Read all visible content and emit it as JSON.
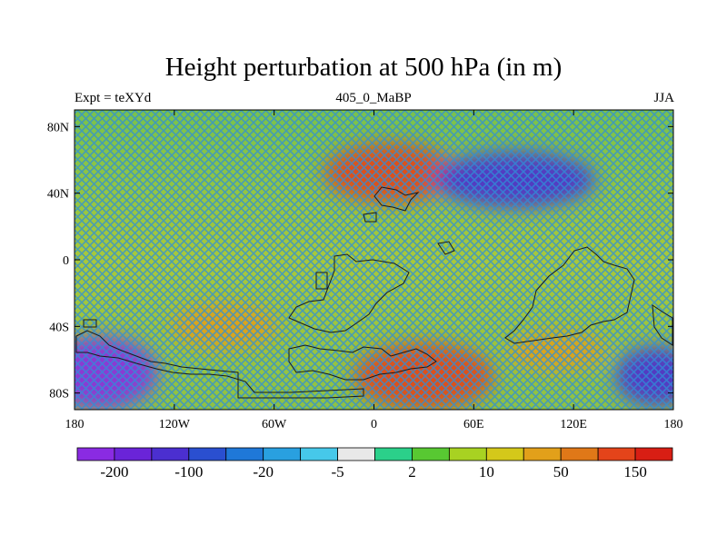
{
  "title": "Height perturbation at 500 hPa (in m)",
  "left_label": "Expt = teXYd",
  "center_label": "405_0_MaBP",
  "right_label": "JJA",
  "map": {
    "projection": "cylindrical equidistant",
    "lon_range": [
      -180,
      180
    ],
    "lat_range": [
      -90,
      90
    ],
    "y_ticks": [
      {
        "value": 80,
        "label": "80N"
      },
      {
        "value": 40,
        "label": "40N"
      },
      {
        "value": 0,
        "label": "0"
      },
      {
        "value": -40,
        "label": "40S"
      },
      {
        "value": -80,
        "label": "80S"
      }
    ],
    "x_ticks": [
      {
        "value": -180,
        "label": "180"
      },
      {
        "value": -120,
        "label": "120W"
      },
      {
        "value": -60,
        "label": "60W"
      },
      {
        "value": 0,
        "label": "0"
      },
      {
        "value": 60,
        "label": "60E"
      },
      {
        "value": 120,
        "label": "120E"
      },
      {
        "value": 180,
        "label": "180"
      }
    ],
    "field_features": [
      {
        "name": "positive anomaly north atlantic",
        "lon": 10,
        "lat": 52,
        "rlon": 40,
        "rlat": 18,
        "value": 150
      },
      {
        "name": "negative anomaly central asia",
        "lon": 85,
        "lat": 48,
        "rlon": 48,
        "rlat": 17,
        "value": -100
      },
      {
        "name": "negative anomaly south pacific",
        "lon": -165,
        "lat": -68,
        "rlon": 35,
        "rlat": 22,
        "value": -200
      },
      {
        "name": "negative anomaly southwest pacific",
        "lon": 170,
        "lat": -70,
        "rlon": 25,
        "rlat": 18,
        "value": -100
      },
      {
        "name": "positive anomaly south america",
        "lon": -90,
        "lat": -40,
        "rlon": 32,
        "rlat": 14,
        "value": 50
      },
      {
        "name": "positive anomaly south atlantic",
        "lon": 30,
        "lat": -70,
        "rlon": 42,
        "rlat": 20,
        "value": 150
      },
      {
        "name": "positive anomaly indian ocean",
        "lon": 110,
        "lat": -55,
        "rlon": 30,
        "rlat": 12,
        "value": 50
      }
    ]
  },
  "colorbar": {
    "colors": [
      "#8a2be2",
      "#6a24d8",
      "#4b2fd0",
      "#2a4fd0",
      "#1f78d8",
      "#29a0e0",
      "#46c8ea",
      "#e8e8e8",
      "#2bd08a",
      "#58c832",
      "#a8d222",
      "#d4c81a",
      "#e2a01a",
      "#e07818",
      "#e4441a",
      "#d81e14"
    ],
    "labels": [
      "-200",
      "-100",
      "-20",
      "-5",
      "2",
      "10",
      "50",
      "150"
    ]
  }
}
